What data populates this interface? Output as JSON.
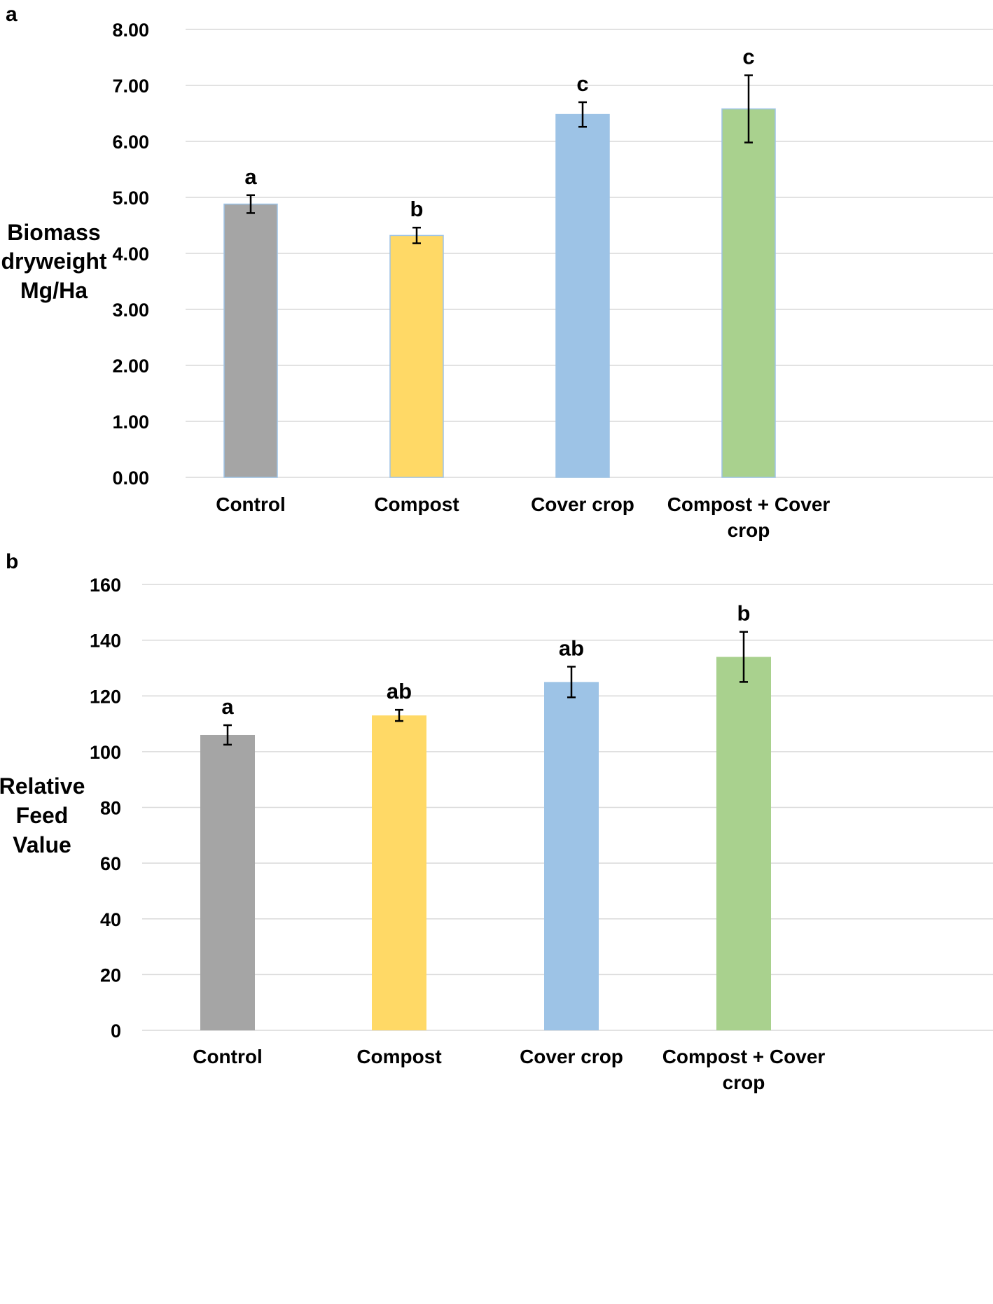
{
  "colors": {
    "Control": "#a5a5a5",
    "Compost": "#ffd966",
    "Cover crop": "#9dc3e6",
    "Compost + Cover crop": "#a9d18e",
    "grid": "#d9d9d9"
  },
  "chart_data": [
    {
      "panel": "a",
      "type": "bar",
      "categories": [
        "Control",
        "Compost",
        "Cover crop",
        "Compost + Cover crop"
      ],
      "category_lines": [
        [
          "Control"
        ],
        [
          "Compost"
        ],
        [
          "Cover crop"
        ],
        [
          "Compost + Cover",
          "crop"
        ]
      ],
      "values": [
        4.88,
        4.32,
        6.48,
        6.58
      ],
      "errors": [
        0.16,
        0.14,
        0.22,
        0.6
      ],
      "significance": [
        "a",
        "b",
        "c",
        "c"
      ],
      "ylabel_lines": [
        "Biomass",
        "dryweight",
        "Mg/Ha"
      ],
      "ylim": [
        0,
        8
      ],
      "yticks": [
        "0.00",
        "1.00",
        "2.00",
        "3.00",
        "4.00",
        "5.00",
        "6.00",
        "7.00",
        "8.00"
      ],
      "grid": true
    },
    {
      "panel": "b",
      "type": "bar",
      "categories": [
        "Control",
        "Compost",
        "Cover crop",
        "Compost + Cover crop"
      ],
      "category_lines": [
        [
          "Control"
        ],
        [
          "Compost"
        ],
        [
          "Cover crop"
        ],
        [
          "Compost + Cover",
          "crop"
        ]
      ],
      "values": [
        106,
        113,
        125,
        134
      ],
      "errors": [
        3.5,
        2,
        5.5,
        9
      ],
      "significance": [
        "a",
        "ab",
        "ab",
        "b"
      ],
      "ylabel_lines": [
        "Relative",
        "Feed",
        "Value"
      ],
      "ylim": [
        0,
        160
      ],
      "yticks": [
        "0",
        "20",
        "40",
        "60",
        "80",
        "100",
        "120",
        "140",
        "160"
      ],
      "grid": true
    }
  ]
}
